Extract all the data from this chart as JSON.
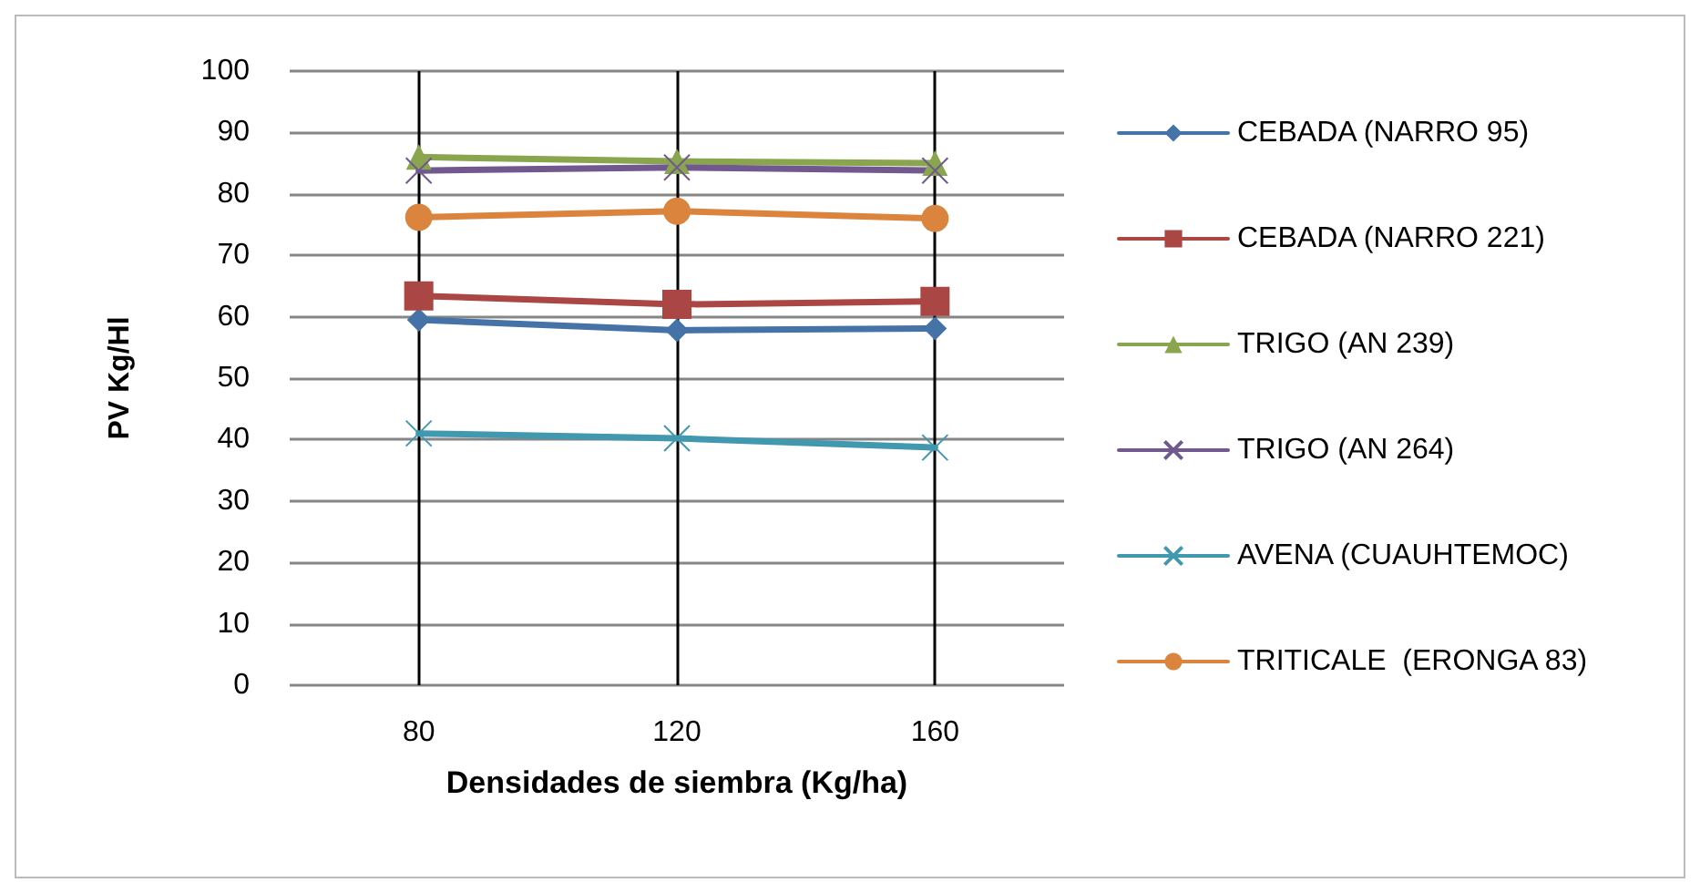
{
  "chart_data": {
    "type": "line",
    "xlabel": "Densidades de siembra (Kg/ha)",
    "ylabel": "PV Kg/Hl",
    "categories": [
      "80",
      "120",
      "160"
    ],
    "series": [
      {
        "name": "CEBADA (NARRO 95)",
        "color": "#4572a7",
        "marker": "diamond",
        "values": [
          59.5,
          57.8,
          58.1
        ]
      },
      {
        "name": "CEBADA (NARRO 221)",
        "color": "#aa4643",
        "marker": "square",
        "values": [
          63.4,
          62.0,
          62.5
        ]
      },
      {
        "name": "TRIGO (AN 239)",
        "color": "#89a54e",
        "marker": "triangle",
        "values": [
          86.0,
          85.3,
          85.0
        ]
      },
      {
        "name": "TRIGO (AN 264)",
        "color": "#71588f",
        "marker": "cross",
        "values": [
          83.8,
          84.3,
          83.8
        ]
      },
      {
        "name": "AVENA (CUAUHTEMOC)",
        "color": "#4198af",
        "marker": "cross",
        "values": [
          41.0,
          40.2,
          38.7
        ]
      },
      {
        "name": "TRITICALE  (ERONGA 83)",
        "color": "#db843d",
        "marker": "circle",
        "values": [
          76.2,
          77.2,
          76.0
        ]
      }
    ],
    "ylim": [
      0,
      100
    ],
    "yticks": [
      0,
      10,
      20,
      30,
      40,
      50,
      60,
      70,
      80,
      90,
      100
    ],
    "grid": "y",
    "legend": "right",
    "ref_lines": [
      {
        "axis": "x",
        "value": "80",
        "color": "#000000"
      },
      {
        "axis": "x",
        "value": "120",
        "color": "#000000"
      },
      {
        "axis": "x",
        "value": "160",
        "color": "#000000"
      }
    ]
  }
}
